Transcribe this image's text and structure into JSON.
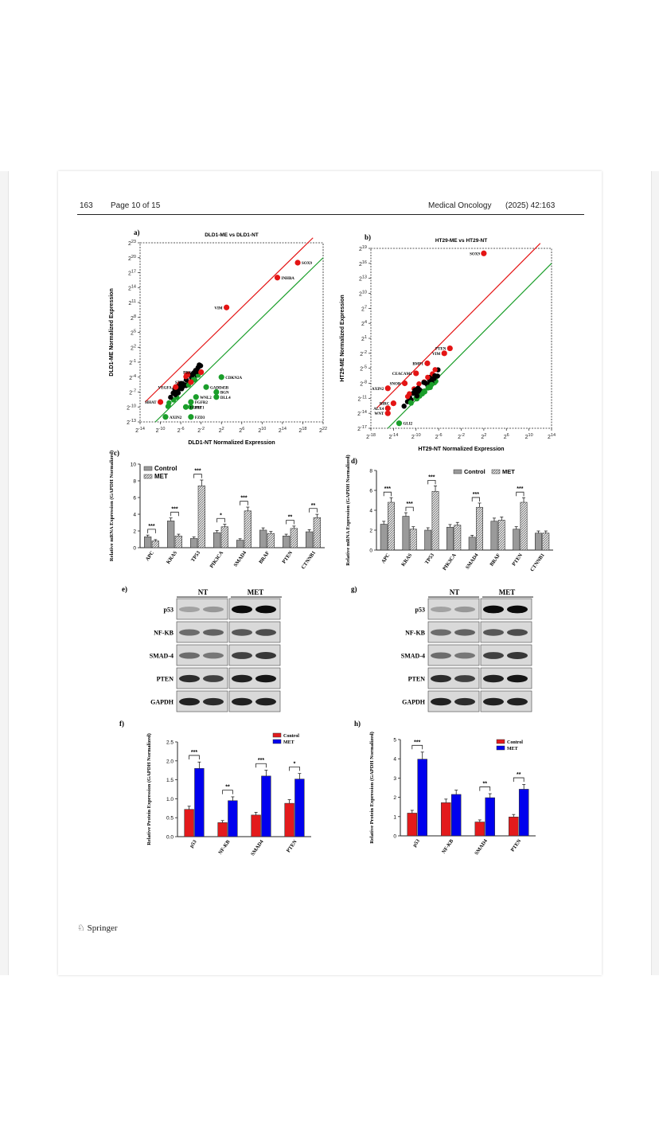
{
  "header": {
    "page_num": "163",
    "page_label": "Page 10 of 15",
    "journal": "Medical Oncology",
    "citation": "(2025) 42:163"
  },
  "footer": {
    "publisher": "Springer"
  },
  "colors": {
    "control_red": "#e31a1c",
    "met_blue": "#0000ee",
    "up_red": "#e41414",
    "down_green": "#1a9e2a",
    "neutral": "#000000"
  },
  "chart_data": [
    {
      "panel": "a)",
      "type": "scatter",
      "title": "DLD1-ME vs DLD1-NT",
      "xlabel": "DLD1-NT Normalized Expression",
      "ylabel": "DLD1-ME Normalized Expression",
      "x_ticks": [
        "2^-14",
        "2^-10",
        "2^-6",
        "2^-2",
        "2^2",
        "2^6",
        "2^10",
        "2^14",
        "2^18",
        "2^22"
      ],
      "y_ticks": [
        "2^-13",
        "2^-10",
        "2^-7",
        "2^-4",
        "2^-1",
        "2^2",
        "2^5",
        "2^8",
        "2^11",
        "2^14",
        "2^17",
        "2^20",
        "2^23"
      ],
      "xlim": [
        -14,
        22
      ],
      "ylim": [
        -13,
        23
      ],
      "scale": "log2",
      "labeled_points": [
        {
          "label": "SOX9",
          "x": 17,
          "y": 19,
          "group": "up"
        },
        {
          "label": "INHBA",
          "x": 13,
          "y": 16,
          "group": "up"
        },
        {
          "label": "VIM",
          "x": 3,
          "y": 10,
          "group": "up"
        },
        {
          "label": "PRKCB",
          "x": -2,
          "y": -3,
          "group": "up"
        },
        {
          "label": "STAT3",
          "x": -4,
          "y": -5,
          "group": "up"
        },
        {
          "label": "VEGFA",
          "x": -7,
          "y": -6,
          "group": "up"
        },
        {
          "label": "HHAT",
          "x": -10,
          "y": -9,
          "group": "up"
        },
        {
          "label": "CDKN2A",
          "x": 2,
          "y": -4,
          "group": "down"
        },
        {
          "label": "GADD45B",
          "x": -1,
          "y": -6,
          "group": "down"
        },
        {
          "label": "BGN",
          "x": 1,
          "y": -7,
          "group": "down"
        },
        {
          "label": "DLL4",
          "x": 1,
          "y": -8,
          "group": "down"
        },
        {
          "label": "WNL2",
          "x": -3,
          "y": -8,
          "group": "down"
        },
        {
          "label": "FGFR2",
          "x": -4,
          "y": -9,
          "group": "down"
        },
        {
          "label": "FLT1",
          "x": -4,
          "y": -10,
          "group": "down"
        },
        {
          "label": "EGFR",
          "x": -5,
          "y": -10,
          "group": "down"
        },
        {
          "label": "AXIN2",
          "x": -9,
          "y": -12,
          "group": "down"
        },
        {
          "label": "FZD3",
          "x": -4,
          "y": -12,
          "group": "down"
        }
      ]
    },
    {
      "panel": "b)",
      "type": "scatter",
      "title": "HT29-ME vs HT29-NT",
      "xlabel": "HT29-NT Normalized Expression",
      "ylabel": "HT29-ME Normalized Expression",
      "x_ticks": [
        "2^-18",
        "2^-14",
        "2^-10",
        "2^-6",
        "2^-2",
        "2^2",
        "2^6",
        "2^10",
        "2^14"
      ],
      "y_ticks": [
        "2^-17",
        "2^-14",
        "2^-11",
        "2^-8",
        "2^-5",
        "2^-2",
        "2^1",
        "2^4",
        "2^7",
        "2^10",
        "2^13",
        "2^16",
        "2^19"
      ],
      "xlim": [
        -18,
        14
      ],
      "ylim": [
        -17,
        19
      ],
      "scale": "log2",
      "labeled_points": [
        {
          "label": "SOX9",
          "x": 2,
          "y": 18,
          "group": "up"
        },
        {
          "label": "PTEN",
          "x": -4,
          "y": -1,
          "group": "up"
        },
        {
          "label": "VIM",
          "x": -5,
          "y": -2,
          "group": "up"
        },
        {
          "label": "BMP1",
          "x": -8,
          "y": -4,
          "group": "up"
        },
        {
          "label": "CEACAM1",
          "x": -10,
          "y": -6,
          "group": "up"
        },
        {
          "label": "SNOR",
          "x": -12,
          "y": -8,
          "group": "up"
        },
        {
          "label": "AXIN2",
          "x": -15,
          "y": -9,
          "group": "up"
        },
        {
          "label": "BIRC",
          "x": -14,
          "y": -12,
          "group": "up"
        },
        {
          "label": "ALX4",
          "x": -15,
          "y": -13,
          "group": "up"
        },
        {
          "label": "WNT",
          "x": -15,
          "y": -14,
          "group": "up"
        },
        {
          "label": "GLI2",
          "x": -13,
          "y": -16,
          "group": "down"
        }
      ]
    },
    {
      "panel": "c)",
      "type": "bar",
      "ylabel": "Relative mRNA Expression (GAPDH Normalized)",
      "categories": [
        "APC",
        "KRAS",
        "TP53",
        "PIK3CA",
        "SMAD4",
        "BRAF",
        "PTEN",
        "CTNNB1"
      ],
      "series": [
        {
          "name": "Control",
          "values": [
            1.3,
            3.2,
            1.1,
            1.8,
            0.9,
            2.1,
            1.4,
            1.9
          ]
        },
        {
          "name": "MET",
          "values": [
            0.8,
            1.4,
            7.4,
            2.5,
            4.4,
            1.7,
            2.3,
            3.6
          ]
        }
      ],
      "significance": [
        "***",
        "***",
        "***",
        "*",
        "***",
        "",
        "**",
        "**"
      ],
      "ylim": [
        0,
        10
      ],
      "y_ticks": [
        "0",
        "2",
        "4",
        "6",
        "8",
        "10"
      ],
      "legend": "top-left"
    },
    {
      "panel": "d)",
      "type": "bar",
      "ylabel": "Relative mRNA Expression (GAPDH Normalized)",
      "categories": [
        "APC",
        "KRAS",
        "TP53",
        "PIK3CA",
        "SMAD4",
        "BRAF",
        "PTEN",
        "CTNNB1"
      ],
      "series": [
        {
          "name": "Control",
          "values": [
            2.6,
            3.4,
            2.0,
            2.3,
            1.3,
            2.9,
            2.1,
            1.7
          ]
        },
        {
          "name": "MET",
          "values": [
            4.8,
            2.1,
            5.9,
            2.5,
            4.3,
            3.0,
            4.8,
            1.7
          ]
        }
      ],
      "significance": [
        "***",
        "***",
        "***",
        "",
        "***",
        "",
        "***",
        ""
      ],
      "ylim": [
        0,
        8
      ],
      "y_ticks": [
        "0",
        "2",
        "4",
        "6",
        "8"
      ],
      "legend": "top-right"
    },
    {
      "panel": "f)",
      "type": "bar",
      "ylabel": "Relative Protein Expression (GAPDH Normalized)",
      "categories": [
        "p53",
        "NF-KB",
        "SMAD4",
        "PTEN"
      ],
      "series": [
        {
          "name": "Control",
          "values": [
            0.72,
            0.37,
            0.57,
            0.88
          ]
        },
        {
          "name": "MET",
          "values": [
            1.8,
            0.95,
            1.6,
            1.52
          ]
        }
      ],
      "significance": [
        "***",
        "**",
        "***",
        "*"
      ],
      "ylim": [
        0,
        2.5
      ],
      "y_ticks": [
        "0.0",
        "0.5",
        "1.0",
        "1.5",
        "2.0",
        "2.5"
      ],
      "legend": "top-right"
    },
    {
      "panel": "h)",
      "type": "bar",
      "ylabel": "Relative Protein Expression (GAPDH Normalized)",
      "categories": [
        "p53",
        "NF-KB",
        "SMAD4",
        "PTEN"
      ],
      "series": [
        {
          "name": "Control",
          "values": [
            1.18,
            1.72,
            0.72,
            0.98
          ]
        },
        {
          "name": "MET",
          "values": [
            3.98,
            2.15,
            1.98,
            2.42
          ]
        }
      ],
      "significance": [
        "***",
        "",
        "**",
        "**"
      ],
      "ylim": [
        0,
        5
      ],
      "y_ticks": [
        "0",
        "1",
        "2",
        "3",
        "4",
        "5"
      ],
      "legend": "top-right"
    }
  ],
  "blots": [
    {
      "panel": "e)",
      "groups": [
        "NT",
        "MET"
      ],
      "rows": [
        "p53",
        "NF-KB",
        "SMAD-4",
        "PTEN",
        "GAPDH"
      ]
    },
    {
      "panel": "g)",
      "groups": [
        "NT",
        "MET"
      ],
      "rows": [
        "p53",
        "NF-KB",
        "SMAD-4",
        "PTEN",
        "GAPDH"
      ]
    }
  ]
}
